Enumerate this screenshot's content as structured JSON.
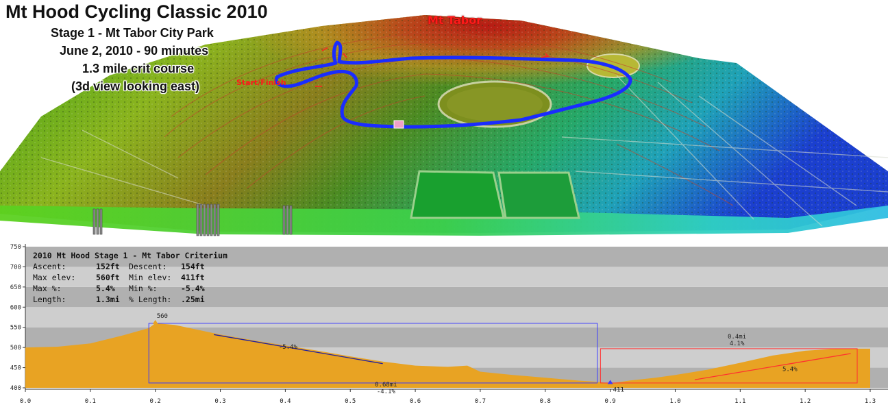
{
  "map": {
    "title": "Mt Hood Cycling Classic 2010",
    "subtitle_lines": [
      "Stage 1 - Mt Tabor City Park",
      "June 2, 2010 - 90 minutes",
      "1.3 mile crit course",
      "(3d view looking east)"
    ],
    "peak_label": "Mt Tabor",
    "start_finish_label": "Start/Finish",
    "colors": {
      "route": "#1a2cff",
      "labels": "#ff1a1a"
    }
  },
  "profile": {
    "title": "2010 Mt Hood Stage 1 - Mt Tabor Criterium",
    "stats": [
      {
        "label1": "Ascent:",
        "value1": "152ft",
        "label2": "Descent:",
        "value2": "154ft"
      },
      {
        "label1": "Max elev:",
        "value1": "560ft",
        "label2": "Min elev:",
        "value2": "411ft"
      },
      {
        "label1": "Max %:",
        "value1": "5.4%",
        "label2": "Min %:",
        "value2": "-5.4%"
      },
      {
        "label1": "Length:",
        "value1": "1.3mi",
        "label2": "% Length:",
        "value2": ".25mi"
      }
    ],
    "max_label": "560",
    "min_label": "411",
    "descent_box": {
      "grade": "-5.4%",
      "distance": "0.68mi",
      "avg": "-4.1%"
    },
    "climb_box": {
      "distance": "0.4mi",
      "avg": "4.1%",
      "grade": "5.4%"
    }
  },
  "chart_data": {
    "type": "area",
    "xlim": [
      0.0,
      1.3
    ],
    "ylim": [
      400,
      750
    ],
    "x_ticks": [
      "0.0",
      "0.1",
      "0.2",
      "0.3",
      "0.4",
      "0.5",
      "0.6",
      "0.7",
      "0.8",
      "0.9",
      "1.0",
      "1.1",
      "1.2",
      "1.3"
    ],
    "y_ticks": [
      "400",
      "450",
      "500",
      "550",
      "600",
      "650",
      "700",
      "750"
    ],
    "x": [
      0.0,
      0.05,
      0.1,
      0.15,
      0.19,
      0.2,
      0.23,
      0.3,
      0.35,
      0.4,
      0.45,
      0.5,
      0.55,
      0.6,
      0.65,
      0.68,
      0.7,
      0.75,
      0.8,
      0.85,
      0.88,
      0.9,
      0.93,
      0.97,
      1.0,
      1.05,
      1.1,
      1.15,
      1.2,
      1.25,
      1.3
    ],
    "y": [
      500,
      502,
      510,
      530,
      548,
      560,
      556,
      532,
      518,
      505,
      492,
      478,
      465,
      455,
      452,
      455,
      440,
      432,
      425,
      418,
      415,
      411,
      418,
      425,
      432,
      445,
      462,
      480,
      492,
      497,
      497
    ],
    "colors": {
      "fill": "#e8a323",
      "descent_box": "#3a3aff",
      "climb_box": "#ff3030",
      "max_marker": "#e8a323",
      "min_marker": "#3a3aff"
    }
  }
}
